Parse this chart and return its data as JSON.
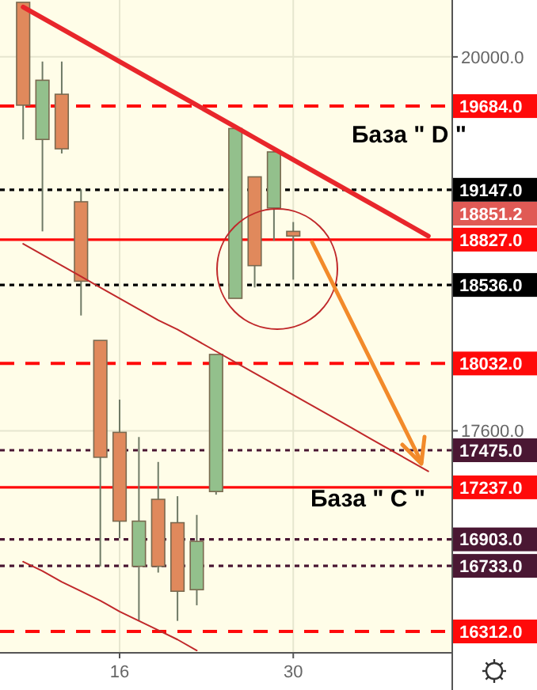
{
  "chart_data": {
    "type": "candlestick",
    "categories": [
      null,
      null,
      null,
      null,
      null,
      "16",
      null,
      null,
      null,
      null,
      null,
      null,
      null,
      null,
      "30",
      null,
      null,
      null,
      null,
      null,
      null,
      null
    ],
    "ohlc": [
      [
        20350,
        20350,
        19470,
        19690
      ],
      [
        19470,
        19970,
        18880,
        19850
      ],
      [
        19760,
        19970,
        19380,
        19410
      ],
      [
        19070,
        19150,
        18340,
        18560
      ],
      [
        18180,
        18180,
        16730,
        17430
      ],
      [
        17590,
        17800,
        16910,
        17020
      ],
      [
        16730,
        17560,
        16380,
        17020
      ],
      [
        17160,
        17400,
        16690,
        16730
      ],
      [
        17010,
        17180,
        16380,
        16570
      ],
      [
        16580,
        17060,
        16480,
        16890
      ],
      [
        17210,
        18090,
        17190,
        18090
      ],
      [
        18450,
        19540,
        18450,
        19540
      ],
      [
        19230,
        19230,
        18520,
        18660
      ],
      [
        19030,
        19420,
        18820,
        19390
      ],
      [
        18880,
        18940,
        18570,
        18850
      ],
      null,
      null,
      null,
      null,
      null,
      null,
      null
    ],
    "colors": [
      "#e0895c",
      "#93c08c",
      "#e0895c",
      "#e0895c",
      "#e0895c",
      "#e0895c",
      "#93c08c",
      "#e0895c",
      "#e0895c",
      "#93c08c",
      "#93c08c",
      "#93c08c",
      "#e0895c",
      "#93c08c",
      "#e0895c",
      null,
      null,
      null,
      null,
      null,
      null,
      null
    ],
    "series": [
      {
        "type": "line",
        "color": "#e8262b",
        "values": [
          20320,
          20250,
          20180,
          20110,
          20040,
          19970,
          19900,
          19830,
          19760,
          19690,
          19620,
          19550,
          19480,
          19410,
          19340,
          19270,
          19200,
          19130,
          19060,
          18990,
          18920,
          18850
        ]
      },
      {
        "type": "line",
        "color": "#c0282a",
        "values": [
          18800,
          18730,
          18660,
          18590,
          18520,
          18450,
          18380,
          18310,
          18250,
          18180,
          18110,
          18040,
          17970,
          17900,
          17830,
          17760,
          17690,
          17620,
          17550,
          17480,
          17410,
          17340
        ]
      },
      {
        "type": "line",
        "color": "#c0282a",
        "values": [
          16760,
          16700,
          16630,
          16570,
          16510,
          16440,
          16380,
          16320,
          16260,
          16190,
          null,
          null,
          null,
          null,
          null,
          null,
          null,
          null,
          null,
          null,
          null,
          null
        ]
      }
    ],
    "ylim": [
      16180,
      20365
    ],
    "yticks": [
      {
        "value": 20000,
        "label": "20000.0"
      },
      {
        "value": 17600,
        "label": "17600.0"
      }
    ],
    "grid": true,
    "ref_lines": [
      {
        "axis": "y",
        "value": 19684,
        "label": "19684.0",
        "color": "#ff0a0a",
        "line_style": "dashed"
      },
      {
        "axis": "y",
        "value": 19147,
        "label": "19147.0",
        "color": "#000000",
        "line_style": "dotted"
      },
      {
        "axis": "y",
        "value": 18827,
        "label": "18827.0",
        "color": "#ff0a0a",
        "line_style": "solid"
      },
      {
        "axis": "y",
        "value": 18536,
        "label": "18536.0",
        "color": "#000000",
        "line_style": "dotted"
      },
      {
        "axis": "y",
        "value": 18032,
        "label": "18032.0",
        "color": "#ff0a0a",
        "line_style": "dashed"
      },
      {
        "axis": "y",
        "value": 17475,
        "label": "17475.0",
        "color": "#4a1733",
        "line_style": "dotted"
      },
      {
        "axis": "y",
        "value": 17237,
        "label": "17237.0",
        "color": "#ff0a0a",
        "line_style": "solid"
      },
      {
        "axis": "y",
        "value": 16903,
        "label": "16903.0",
        "color": "#4a1733",
        "line_style": "dotted"
      },
      {
        "axis": "y",
        "value": 16733,
        "label": "16733.0",
        "color": "#4a1733",
        "line_style": "dotted"
      },
      {
        "axis": "y",
        "value": 16312,
        "label": "16312.0",
        "color": "#ff0a0a",
        "line_style": "dashed"
      }
    ],
    "annotations": [
      "База  \" D \"",
      "База  \" C \"",
      "18851.2"
    ]
  }
}
